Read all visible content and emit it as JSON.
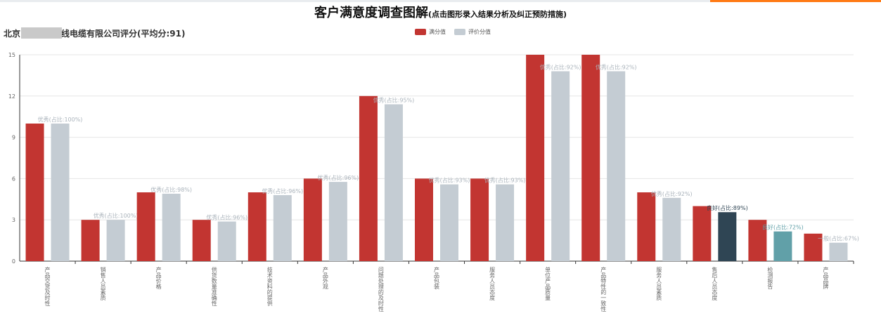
{
  "header": {
    "title": "客户满意度调查图解",
    "subtitle": "(点击图形录入结果分析及纠正预防措施)"
  },
  "chart_data": {
    "type": "bar",
    "title": "北京",
    "title_suffix": "线电缆有限公司评分(平均分:91)",
    "legend_position": "top-center",
    "ylim": [
      0,
      15
    ],
    "yticks": [
      0,
      3,
      6,
      9,
      12,
      15
    ],
    "grid": true,
    "categories": [
      "产品交货及时性",
      "销售人员素质",
      "产品价格",
      "供货数量准确性",
      "技术资料的提供",
      "产品外观",
      "问题处理的及时性",
      "产品包装",
      "服务人员态度",
      "单位产品质量",
      "产品特性的一致性",
      "服务人员素质",
      "售后人员态度",
      "检测报告",
      "产品品牌"
    ],
    "series": [
      {
        "name": "满分值",
        "color": "#c23531",
        "values": [
          10,
          3,
          5,
          3,
          5,
          6,
          12,
          6,
          6,
          15,
          15,
          5,
          4,
          3,
          2
        ]
      },
      {
        "name": "评价分值",
        "color": "#c4ccd3",
        "values": [
          10,
          3,
          4.9,
          2.88,
          4.8,
          5.76,
          11.4,
          5.58,
          5.58,
          13.8,
          13.8,
          4.6,
          3.56,
          2.16,
          1.34
        ],
        "colors": [
          "#c4ccd3",
          "#c4ccd3",
          "#c4ccd3",
          "#c4ccd3",
          "#c4ccd3",
          "#c4ccd3",
          "#c4ccd3",
          "#c4ccd3",
          "#c4ccd3",
          "#c4ccd3",
          "#c4ccd3",
          "#c4ccd3",
          "#2f4554",
          "#61a0a8",
          "#c4ccd3"
        ],
        "labels": [
          "优秀(占比:100%)",
          "优秀(占比:100%)",
          "优秀(占比:98%)",
          "优秀(占比:96%)",
          "优秀(占比:96%)",
          "优秀(占比:96%)",
          "优秀(占比:95%)",
          "优秀(占比:93%)",
          "优秀(占比:93%)",
          "优秀(占比:92%)",
          "优秀(占比:92%)",
          "优秀(占比:92%)",
          "良好(占比:89%)",
          "良好(占比:72%)",
          "一般(占比:67%)"
        ]
      }
    ]
  }
}
